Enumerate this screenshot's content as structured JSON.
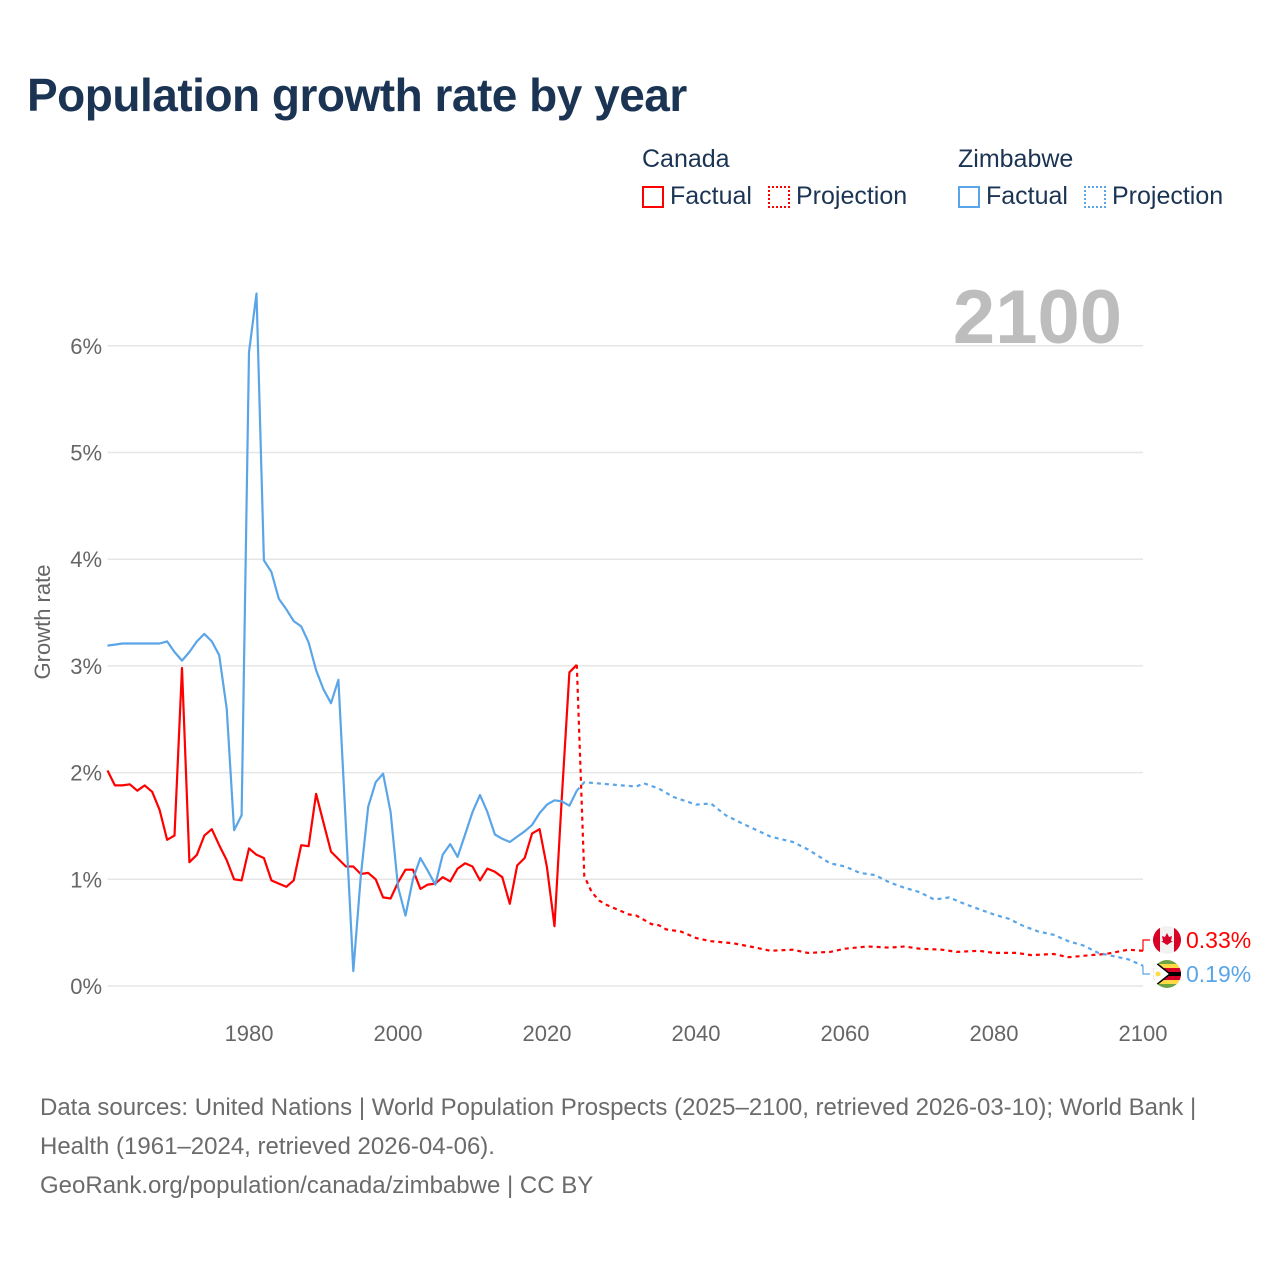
{
  "title": "Population growth rate by year",
  "legend": {
    "groups": [
      {
        "name": "Canada",
        "color": "#ff0000",
        "items": [
          "Factual",
          "Projection"
        ]
      },
      {
        "name": "Zimbabwe",
        "color": "#5aa5e8",
        "items": [
          "Factual",
          "Projection"
        ]
      }
    ]
  },
  "year_display": "2100",
  "end_labels": {
    "canada": "0.33%",
    "zimbabwe": "0.19%"
  },
  "footer": {
    "sources": "Data sources: United Nations | World Population Prospects (2025–2100, retrieved 2026-03-10); World Bank | Health (1961–2024, retrieved 2026-04-06).",
    "credit": "GeoRank.org/population/canada/zimbabwe | CC BY"
  },
  "chart_data": {
    "type": "line",
    "title": "Population growth rate by year",
    "xlabel": "",
    "ylabel": "Growth rate",
    "xlim": [
      1961,
      2100
    ],
    "ylim": [
      0,
      6.5
    ],
    "x_ticks": [
      "1980",
      "2000",
      "2020",
      "2040",
      "2060",
      "2080",
      "2100"
    ],
    "y_ticks": [
      "0%",
      "1%",
      "2%",
      "3%",
      "4%",
      "5%",
      "6%"
    ],
    "grid": true,
    "series": [
      {
        "name": "Canada Factual",
        "color": "#ff0000",
        "dashed": false,
        "x": [
          1961,
          1962,
          1963,
          1964,
          1965,
          1966,
          1967,
          1968,
          1969,
          1970,
          1971,
          1972,
          1973,
          1974,
          1975,
          1976,
          1977,
          1978,
          1979,
          1980,
          1981,
          1982,
          1983,
          1984,
          1985,
          1986,
          1987,
          1988,
          1989,
          1990,
          1991,
          1992,
          1993,
          1994,
          1995,
          1996,
          1997,
          1998,
          1999,
          2000,
          2001,
          2002,
          2003,
          2004,
          2005,
          2006,
          2007,
          2008,
          2009,
          2010,
          2011,
          2012,
          2013,
          2014,
          2015,
          2016,
          2017,
          2018,
          2019,
          2020,
          2021,
          2022,
          2023,
          2024
        ],
        "y": [
          2.02,
          1.88,
          1.88,
          1.89,
          1.83,
          1.88,
          1.82,
          1.65,
          1.37,
          1.41,
          2.98,
          1.16,
          1.23,
          1.41,
          1.47,
          1.32,
          1.18,
          1.0,
          0.99,
          1.29,
          1.23,
          1.2,
          0.99,
          0.96,
          0.93,
          0.99,
          1.32,
          1.31,
          1.8,
          1.53,
          1.26,
          1.19,
          1.12,
          1.12,
          1.05,
          1.06,
          1.0,
          0.83,
          0.82,
          0.97,
          1.09,
          1.09,
          0.91,
          0.95,
          0.96,
          1.02,
          0.98,
          1.1,
          1.15,
          1.12,
          0.99,
          1.1,
          1.07,
          1.02,
          0.77,
          1.13,
          1.2,
          1.43,
          1.47,
          1.11,
          0.56,
          1.78,
          2.94,
          3.01
        ]
      },
      {
        "name": "Canada Projection",
        "color": "#ff0000",
        "dashed": true,
        "x": [
          2024,
          2025,
          2026,
          2027,
          2028,
          2029,
          2030,
          2031,
          2032,
          2033,
          2034,
          2035,
          2036,
          2037,
          2038,
          2039,
          2040,
          2042,
          2045,
          2048,
          2050,
          2053,
          2055,
          2058,
          2060,
          2063,
          2066,
          2068,
          2070,
          2073,
          2075,
          2078,
          2080,
          2083,
          2085,
          2088,
          2090,
          2093,
          2095,
          2098,
          2100
        ],
        "y": [
          3.01,
          1.03,
          0.88,
          0.8,
          0.76,
          0.73,
          0.7,
          0.67,
          0.66,
          0.62,
          0.58,
          0.57,
          0.53,
          0.52,
          0.51,
          0.48,
          0.45,
          0.42,
          0.4,
          0.36,
          0.33,
          0.34,
          0.31,
          0.32,
          0.35,
          0.37,
          0.36,
          0.37,
          0.35,
          0.34,
          0.32,
          0.33,
          0.31,
          0.31,
          0.29,
          0.3,
          0.27,
          0.29,
          0.3,
          0.34,
          0.33
        ]
      },
      {
        "name": "Zimbabwe Factual",
        "color": "#5aa5e8",
        "dashed": false,
        "x": [
          1961,
          1962,
          1963,
          1964,
          1965,
          1966,
          1967,
          1968,
          1969,
          1970,
          1971,
          1972,
          1973,
          1974,
          1975,
          1976,
          1977,
          1978,
          1979,
          1980,
          1981,
          1982,
          1983,
          1984,
          1985,
          1986,
          1987,
          1988,
          1989,
          1990,
          1991,
          1992,
          1993,
          1994,
          1995,
          1996,
          1997,
          1998,
          1999,
          2000,
          2001,
          2002,
          2003,
          2004,
          2005,
          2006,
          2007,
          2008,
          2009,
          2010,
          2011,
          2012,
          2013,
          2014,
          2015,
          2016,
          2017,
          2018,
          2019,
          2020,
          2021,
          2022,
          2023,
          2024
        ],
        "y": [
          3.19,
          3.2,
          3.21,
          3.21,
          3.21,
          3.21,
          3.21,
          3.21,
          3.23,
          3.13,
          3.05,
          3.13,
          3.23,
          3.3,
          3.23,
          3.1,
          2.6,
          1.46,
          1.6,
          5.94,
          6.49,
          3.99,
          3.88,
          3.63,
          3.53,
          3.42,
          3.37,
          3.22,
          2.96,
          2.78,
          2.65,
          2.87,
          1.5,
          0.14,
          1.03,
          1.68,
          1.91,
          1.99,
          1.63,
          0.93,
          0.66,
          1.0,
          1.2,
          1.08,
          0.95,
          1.23,
          1.33,
          1.21,
          1.42,
          1.63,
          1.79,
          1.63,
          1.42,
          1.38,
          1.35,
          1.4,
          1.45,
          1.51,
          1.62,
          1.7,
          1.74,
          1.73,
          1.69,
          1.83
        ]
      },
      {
        "name": "Zimbabwe Projection",
        "color": "#5aa5e8",
        "dashed": true,
        "x": [
          2024,
          2025,
          2030,
          2032,
          2033,
          2035,
          2037,
          2040,
          2042,
          2044,
          2046,
          2050,
          2053,
          2055,
          2058,
          2060,
          2062,
          2064,
          2066,
          2068,
          2070,
          2072,
          2074,
          2076,
          2078,
          2080,
          2082,
          2084,
          2086,
          2088,
          2090,
          2092,
          2094,
          2096,
          2098,
          2100
        ],
        "y": [
          1.83,
          1.91,
          1.88,
          1.87,
          1.9,
          1.85,
          1.77,
          1.7,
          1.71,
          1.6,
          1.53,
          1.4,
          1.35,
          1.28,
          1.15,
          1.12,
          1.06,
          1.04,
          0.97,
          0.92,
          0.88,
          0.81,
          0.83,
          0.77,
          0.72,
          0.67,
          0.63,
          0.56,
          0.51,
          0.48,
          0.42,
          0.38,
          0.31,
          0.28,
          0.25,
          0.19
        ]
      }
    ]
  }
}
